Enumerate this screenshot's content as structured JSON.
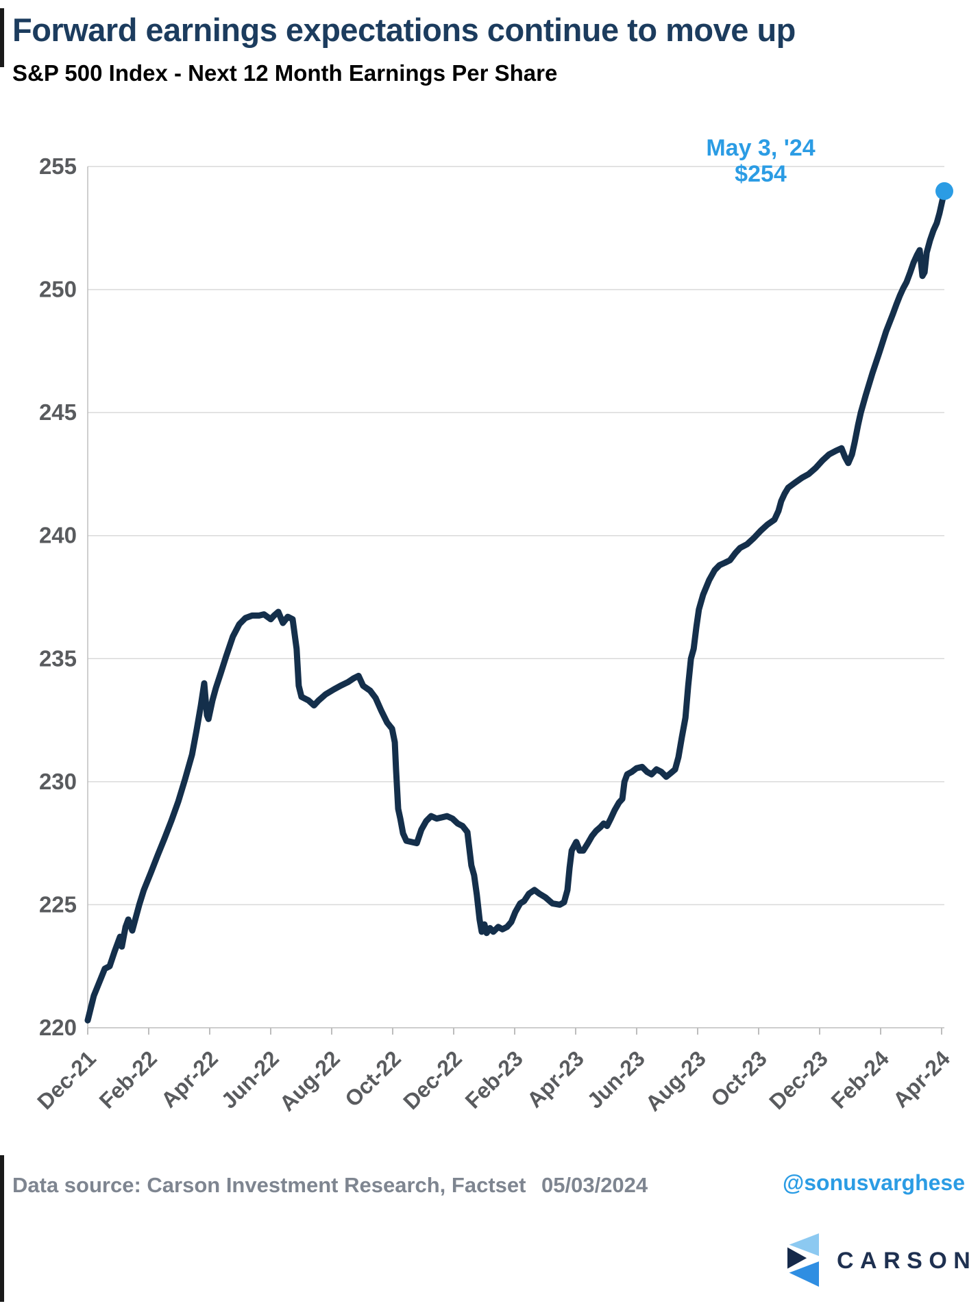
{
  "header": {
    "title": "Forward earnings expectations continue to move up",
    "subtitle": "S&P 500 Index - Next 12 Month Earnings Per Share"
  },
  "footer": {
    "source": "Data source: Carson Investment Research, Factset",
    "date": "05/03/2024",
    "handle": "@sonusvarghese"
  },
  "logo": {
    "wordmark": "CARSON",
    "icon": "carson-chevron-icon",
    "icon_colors": {
      "light_blue": "#8cc9f1",
      "mid_blue": "#2f8ee2",
      "navy": "#15294a"
    },
    "wordmark_color": "#1e3050"
  },
  "colors": {
    "title_navy": "#1c3c5e",
    "line_navy": "#142f4b",
    "accent_blue": "#2b9ce4",
    "grid": "#d9d9d9",
    "axis": "#bdbdbd",
    "tick_label": "#595b5e",
    "footer_gray": "#7e8590"
  },
  "chart_data": {
    "type": "line",
    "title": "S&P 500 Index - Next 12 Month Earnings Per Share",
    "xlabel": "",
    "ylabel": "",
    "ylim": [
      220,
      255
    ],
    "xlim_months_since_dec21": [
      0,
      28.09
    ],
    "grid": "horizontal",
    "legend": "none",
    "y_ticks": [
      255,
      250,
      245,
      240,
      235,
      230,
      225,
      220
    ],
    "x_tick_months": [
      0,
      2,
      4,
      6,
      8,
      10,
      12,
      14,
      16,
      18,
      20,
      22,
      24,
      26,
      28
    ],
    "x_tick_labels": [
      "Dec-21",
      "Feb-22",
      "Apr-22",
      "Jun-22",
      "Aug-22",
      "Oct-22",
      "Dec-22",
      "Feb-23",
      "Apr-23",
      "Jun-23",
      "Aug-23",
      "Oct-23",
      "Dec-23",
      "Feb-24",
      "Apr-24"
    ],
    "annotation": {
      "line1": "May 3, '24",
      "line2": "$254",
      "color": "#2b9ce4",
      "point": {
        "t_months": 28.09,
        "value": 254
      }
    },
    "series": [
      {
        "name": "S&P 500 NTM EPS",
        "color": "#142f4b",
        "points": [
          [
            0.0,
            220.3
          ],
          [
            0.02,
            220.4
          ],
          [
            0.2,
            221.3
          ],
          [
            0.43,
            222.0
          ],
          [
            0.56,
            222.4
          ],
          [
            0.72,
            222.5
          ],
          [
            0.88,
            223.1
          ],
          [
            1.06,
            223.7
          ],
          [
            1.12,
            223.3
          ],
          [
            1.24,
            224.1
          ],
          [
            1.33,
            224.4
          ],
          [
            1.46,
            223.95
          ],
          [
            1.69,
            225.0
          ],
          [
            1.84,
            225.6
          ],
          [
            2.07,
            226.3
          ],
          [
            2.29,
            227.0
          ],
          [
            2.52,
            227.7
          ],
          [
            2.74,
            228.4
          ],
          [
            2.97,
            229.2
          ],
          [
            3.19,
            230.1
          ],
          [
            3.42,
            231.1
          ],
          [
            3.57,
            232.1
          ],
          [
            3.71,
            233.1
          ],
          [
            3.82,
            234.0
          ],
          [
            3.91,
            232.7
          ],
          [
            3.96,
            232.55
          ],
          [
            4.09,
            233.3
          ],
          [
            4.2,
            233.8
          ],
          [
            4.36,
            234.4
          ],
          [
            4.54,
            235.1
          ],
          [
            4.76,
            235.9
          ],
          [
            4.97,
            236.4
          ],
          [
            5.17,
            236.65
          ],
          [
            5.39,
            236.75
          ],
          [
            5.62,
            236.75
          ],
          [
            5.78,
            236.8
          ],
          [
            6.0,
            236.6
          ],
          [
            6.11,
            236.75
          ],
          [
            6.25,
            236.9
          ],
          [
            6.4,
            236.45
          ],
          [
            6.56,
            236.7
          ],
          [
            6.72,
            236.6
          ],
          [
            6.85,
            235.4
          ],
          [
            6.92,
            233.9
          ],
          [
            7.01,
            233.45
          ],
          [
            7.24,
            233.3
          ],
          [
            7.42,
            233.1
          ],
          [
            7.57,
            233.3
          ],
          [
            7.8,
            233.55
          ],
          [
            8.07,
            233.75
          ],
          [
            8.29,
            233.9
          ],
          [
            8.54,
            234.05
          ],
          [
            8.72,
            234.2
          ],
          [
            8.88,
            234.3
          ],
          [
            9.03,
            233.9
          ],
          [
            9.26,
            233.7
          ],
          [
            9.44,
            233.4
          ],
          [
            9.62,
            232.9
          ],
          [
            9.82,
            232.4
          ],
          [
            9.98,
            232.15
          ],
          [
            10.07,
            231.6
          ],
          [
            10.11,
            230.5
          ],
          [
            10.18,
            228.9
          ],
          [
            10.25,
            228.5
          ],
          [
            10.34,
            227.9
          ],
          [
            10.45,
            227.6
          ],
          [
            10.61,
            227.55
          ],
          [
            10.79,
            227.5
          ],
          [
            10.94,
            228.05
          ],
          [
            11.1,
            228.4
          ],
          [
            11.26,
            228.6
          ],
          [
            11.44,
            228.5
          ],
          [
            11.62,
            228.55
          ],
          [
            11.78,
            228.6
          ],
          [
            11.96,
            228.5
          ],
          [
            12.13,
            228.3
          ],
          [
            12.29,
            228.2
          ],
          [
            12.45,
            227.95
          ],
          [
            12.58,
            226.6
          ],
          [
            12.67,
            226.2
          ],
          [
            12.76,
            225.4
          ],
          [
            12.85,
            224.4
          ],
          [
            12.92,
            223.9
          ],
          [
            13.01,
            224.2
          ],
          [
            13.08,
            223.85
          ],
          [
            13.19,
            224.05
          ],
          [
            13.3,
            223.9
          ],
          [
            13.46,
            224.1
          ],
          [
            13.6,
            224.0
          ],
          [
            13.75,
            224.1
          ],
          [
            13.89,
            224.3
          ],
          [
            14.02,
            224.7
          ],
          [
            14.18,
            225.05
          ],
          [
            14.31,
            225.15
          ],
          [
            14.47,
            225.45
          ],
          [
            14.65,
            225.6
          ],
          [
            14.81,
            225.45
          ],
          [
            15.01,
            225.3
          ],
          [
            15.24,
            225.05
          ],
          [
            15.48,
            225.0
          ],
          [
            15.62,
            225.1
          ],
          [
            15.73,
            225.6
          ],
          [
            15.8,
            226.5
          ],
          [
            15.87,
            227.2
          ],
          [
            16.02,
            227.55
          ],
          [
            16.13,
            227.2
          ],
          [
            16.25,
            227.2
          ],
          [
            16.4,
            227.5
          ],
          [
            16.54,
            227.8
          ],
          [
            16.67,
            228.0
          ],
          [
            16.81,
            228.15
          ],
          [
            16.92,
            228.3
          ],
          [
            17.03,
            228.2
          ],
          [
            17.15,
            228.5
          ],
          [
            17.28,
            228.85
          ],
          [
            17.42,
            229.15
          ],
          [
            17.53,
            229.3
          ],
          [
            17.6,
            230.0
          ],
          [
            17.69,
            230.3
          ],
          [
            17.84,
            230.4
          ],
          [
            18.0,
            230.55
          ],
          [
            18.18,
            230.6
          ],
          [
            18.34,
            230.4
          ],
          [
            18.49,
            230.3
          ],
          [
            18.65,
            230.5
          ],
          [
            18.81,
            230.4
          ],
          [
            18.97,
            230.2
          ],
          [
            19.12,
            230.35
          ],
          [
            19.26,
            230.5
          ],
          [
            19.37,
            231.0
          ],
          [
            19.48,
            231.8
          ],
          [
            19.6,
            232.6
          ],
          [
            19.69,
            233.9
          ],
          [
            19.78,
            235.0
          ],
          [
            19.87,
            235.4
          ],
          [
            19.96,
            236.3
          ],
          [
            20.04,
            237.0
          ],
          [
            20.18,
            237.6
          ],
          [
            20.38,
            238.2
          ],
          [
            20.56,
            238.6
          ],
          [
            20.72,
            238.8
          ],
          [
            20.9,
            238.9
          ],
          [
            21.06,
            239.0
          ],
          [
            21.24,
            239.3
          ],
          [
            21.39,
            239.5
          ],
          [
            21.62,
            239.65
          ],
          [
            21.84,
            239.9
          ],
          [
            22.07,
            240.2
          ],
          [
            22.29,
            240.45
          ],
          [
            22.52,
            240.65
          ],
          [
            22.65,
            241.0
          ],
          [
            22.74,
            241.4
          ],
          [
            22.85,
            241.7
          ],
          [
            22.97,
            241.95
          ],
          [
            23.19,
            242.15
          ],
          [
            23.42,
            242.35
          ],
          [
            23.64,
            242.5
          ],
          [
            23.87,
            242.75
          ],
          [
            24.09,
            243.05
          ],
          [
            24.31,
            243.3
          ],
          [
            24.54,
            243.45
          ],
          [
            24.72,
            243.55
          ],
          [
            24.83,
            243.2
          ],
          [
            24.94,
            242.95
          ],
          [
            25.06,
            243.3
          ],
          [
            25.15,
            243.8
          ],
          [
            25.26,
            244.5
          ],
          [
            25.35,
            245.0
          ],
          [
            25.51,
            245.7
          ],
          [
            25.73,
            246.6
          ],
          [
            25.96,
            247.45
          ],
          [
            26.18,
            248.3
          ],
          [
            26.4,
            249.0
          ],
          [
            26.52,
            249.4
          ],
          [
            26.63,
            249.75
          ],
          [
            26.74,
            250.05
          ],
          [
            26.85,
            250.3
          ],
          [
            26.97,
            250.7
          ],
          [
            27.08,
            251.1
          ],
          [
            27.19,
            251.4
          ],
          [
            27.28,
            251.6
          ],
          [
            27.37,
            250.55
          ],
          [
            27.44,
            250.7
          ],
          [
            27.51,
            251.5
          ],
          [
            27.62,
            252.0
          ],
          [
            27.73,
            252.4
          ],
          [
            27.84,
            252.7
          ],
          [
            27.93,
            253.1
          ],
          [
            28.02,
            253.6
          ],
          [
            28.09,
            254.0
          ]
        ]
      }
    ]
  }
}
